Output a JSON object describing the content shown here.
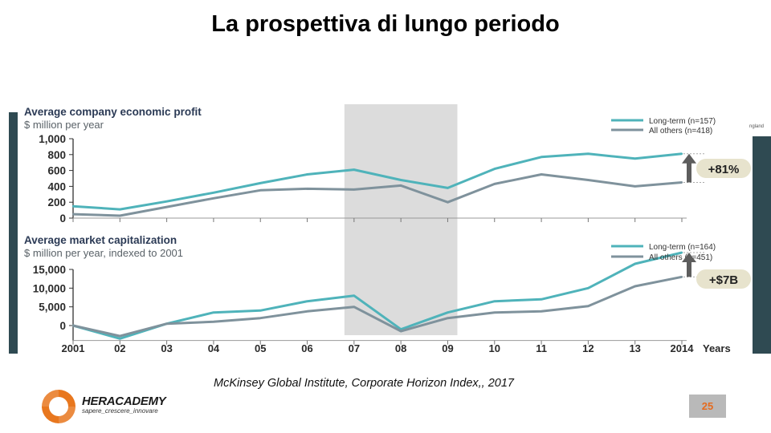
{
  "slide": {
    "title": "La prospettiva di lungo periodo",
    "source": "McKinsey Global Institute, Corporate Horizon Index,, 2017",
    "page_number": "25",
    "background_fragment": "ngland"
  },
  "logo": {
    "name": "HERACADEMY",
    "tagline": "sapere_crescere_innovare",
    "color": "#e8771e"
  },
  "colors": {
    "long_term": "#4fb3ba",
    "all_others": "#7f929c",
    "shaded_band": "#dcdcdc",
    "side_panel": "#2f4a52",
    "callout_bg": "#e7e3cd",
    "arrow": "#5d5d5d"
  },
  "chart_data": [
    {
      "type": "line",
      "title": "Average company economic profit",
      "subtitle": "$ million per year",
      "x": [
        "2001",
        "02",
        "03",
        "04",
        "05",
        "06",
        "07",
        "08",
        "09",
        "10",
        "11",
        "12",
        "13",
        "2014"
      ],
      "xlabel": "Years",
      "ylim": [
        0,
        1000
      ],
      "yticks": [
        "0",
        "200",
        "400",
        "600",
        "800",
        "1,000"
      ],
      "yticks_values": [
        0,
        200,
        400,
        600,
        800,
        1000
      ],
      "shaded_range": [
        "07",
        "09"
      ],
      "series": [
        {
          "name": "Long-term (n=157)",
          "values": [
            150,
            110,
            210,
            320,
            440,
            550,
            610,
            480,
            380,
            620,
            770,
            810,
            750,
            810
          ]
        },
        {
          "name": "All others (n=418)",
          "values": [
            50,
            30,
            140,
            250,
            350,
            370,
            360,
            410,
            200,
            430,
            550,
            480,
            400,
            450
          ]
        }
      ],
      "callout": "+81%",
      "grid": false,
      "legend_position": "top-right"
    },
    {
      "type": "line",
      "title": "Average market capitalization",
      "subtitle": "$ million per year, indexed to 2001",
      "x": [
        "2001",
        "02",
        "03",
        "04",
        "05",
        "06",
        "07",
        "08",
        "09",
        "10",
        "11",
        "12",
        "13",
        "2014"
      ],
      "xlabel": "Years",
      "ylim": [
        -5000,
        20000
      ],
      "yticks": [
        "0",
        "5,000",
        "10,000",
        "15,000"
      ],
      "yticks_values": [
        0,
        5000,
        10000,
        15000
      ],
      "shaded_range": [
        "07",
        "09"
      ],
      "series": [
        {
          "name": "Long-term (n=164)",
          "values": [
            0,
            -3500,
            500,
            3500,
            4000,
            6500,
            8000,
            -1000,
            3500,
            6500,
            7000,
            10000,
            16500,
            19500
          ]
        },
        {
          "name": "All others (n=451)",
          "values": [
            0,
            -2800,
            500,
            1000,
            2000,
            3800,
            5000,
            -1500,
            2000,
            3500,
            3800,
            5200,
            10500,
            13000
          ]
        }
      ],
      "callout": "+$7B",
      "grid": false,
      "legend_position": "top-right"
    }
  ]
}
